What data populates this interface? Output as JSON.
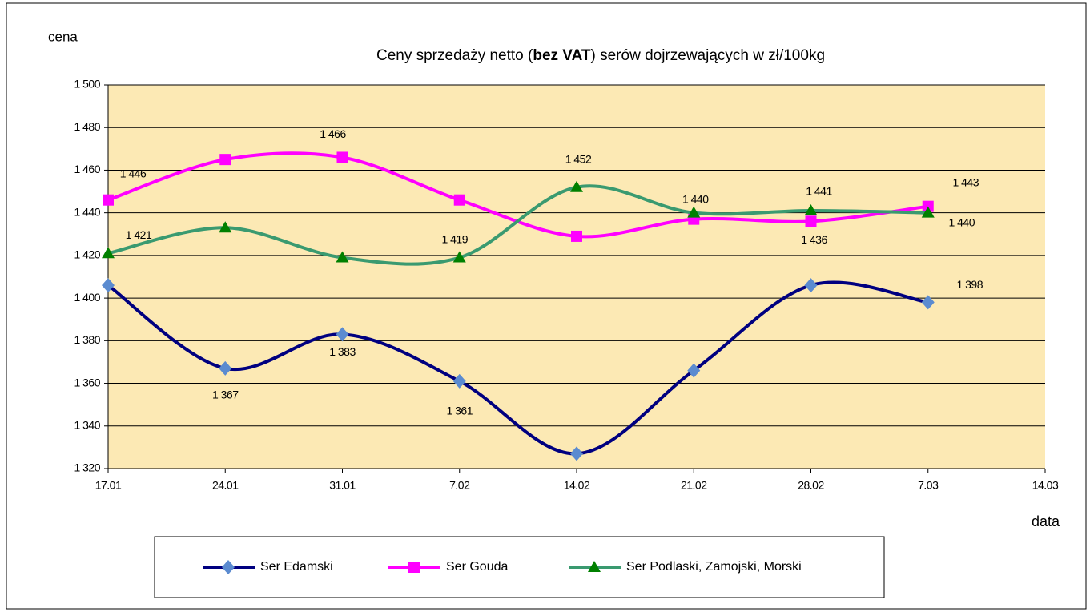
{
  "chart_data": {
    "type": "line",
    "title": [
      "Ceny sprzedaży netto (",
      "bez VAT",
      ") serów dojrzewających  w zł/100kg"
    ],
    "title_bold": [
      false,
      true,
      false
    ],
    "y_label": "cena",
    "x_label": "data",
    "categories": [
      "17.01",
      "24.01",
      "31.01",
      "7.02",
      "14.02",
      "21.02",
      "28.02",
      "7.03",
      "14.03"
    ],
    "series": [
      {
        "name": "Ser Edamski",
        "color": "#000080",
        "marker_color": "#5b8bd0",
        "marker": "diamond",
        "values": [
          1406,
          1367,
          1383,
          1361,
          1327,
          1366,
          1406,
          1398,
          null
        ],
        "value_labels": [
          null,
          "1 367",
          "1 383",
          "1 361",
          null,
          null,
          null,
          "1 398",
          null
        ]
      },
      {
        "name": "Ser Gouda",
        "color": "#ff00ff",
        "marker_color": "#ff00ff",
        "marker": "square",
        "values": [
          1446,
          1465,
          1466,
          1446,
          1429,
          1437,
          1436,
          1443,
          null
        ],
        "value_labels": [
          "1 446",
          null,
          "1 466",
          null,
          null,
          null,
          "1 436",
          "1 443",
          null
        ]
      },
      {
        "name": "Ser Podlaski, Zamojski, Morski",
        "color": "#3a9a70",
        "marker_color": "#008000",
        "marker": "triangle",
        "values": [
          1421,
          1433,
          1419,
          1419,
          1452,
          1440,
          1441,
          1440,
          null
        ],
        "value_labels": [
          "1 421",
          null,
          null,
          "1 419",
          "1 452",
          "1 440",
          "1 441",
          "1 440",
          null
        ]
      }
    ],
    "ylim": [
      1320,
      1500
    ],
    "yticks": [
      {
        "value": 1320,
        "label": "1 320"
      },
      {
        "value": 1340,
        "label": "1 340"
      },
      {
        "value": 1360,
        "label": "1 360"
      },
      {
        "value": 1380,
        "label": "1 380"
      },
      {
        "value": 1400,
        "label": "1 400"
      },
      {
        "value": 1420,
        "label": "1 420"
      },
      {
        "value": 1440,
        "label": "1 440"
      },
      {
        "value": 1460,
        "label": "1 460"
      },
      {
        "value": 1480,
        "label": "1 480"
      },
      {
        "value": 1500,
        "label": "1 500"
      }
    ],
    "grid": true,
    "plot_background": "#fce9b4",
    "legend": "bottom"
  }
}
